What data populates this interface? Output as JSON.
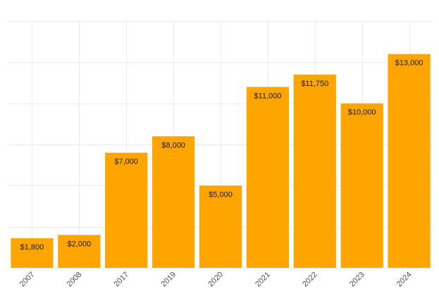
{
  "chart_data": {
    "type": "bar",
    "title": "",
    "xlabel": "",
    "ylabel": "",
    "categories": [
      "2007",
      "2008",
      "2017",
      "2019",
      "2020",
      "2021",
      "2022",
      "2023",
      "2024"
    ],
    "values": [
      1800,
      2000,
      7000,
      8000,
      5000,
      11000,
      11750,
      10000,
      13000
    ],
    "data_labels": [
      "$1,800",
      "$2,000",
      "$7,000",
      "$8,000",
      "$5,000",
      "$11,000",
      "$11,750",
      "$10,000",
      "$13,000"
    ],
    "ylim": [
      0,
      15000
    ],
    "y_gridlines": [
      0,
      2500,
      5000,
      7500,
      10000,
      12500,
      15000
    ],
    "grid": true,
    "legend": "none",
    "y_tick_labels_shown": false,
    "bar_color": "#FFA500",
    "grid_color": "#EBEBEB"
  }
}
